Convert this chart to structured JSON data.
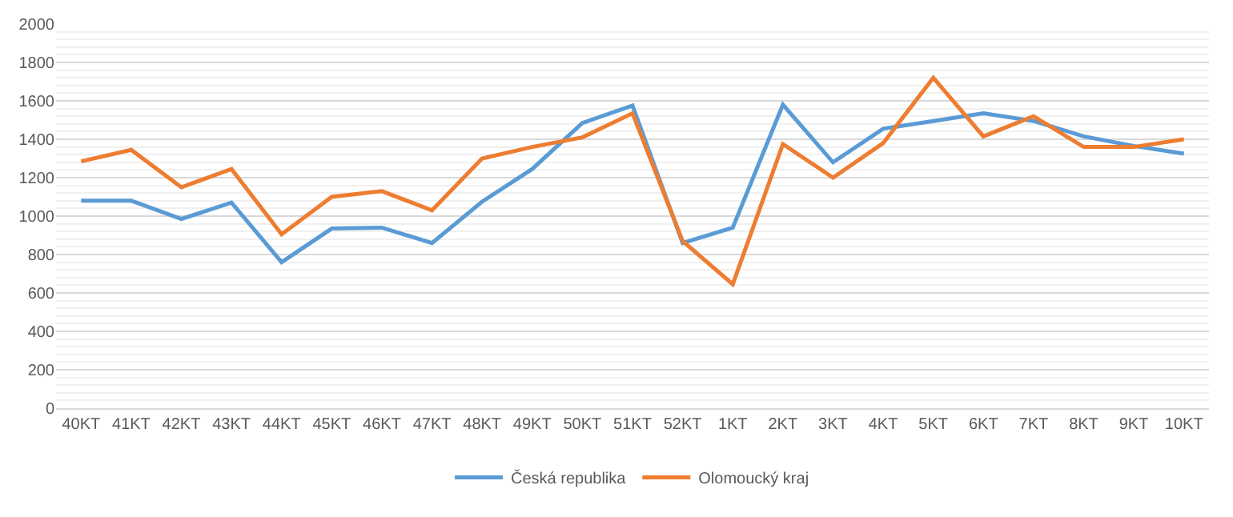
{
  "chart_data": {
    "type": "line",
    "categories": [
      "40KT",
      "41KT",
      "42KT",
      "43KT",
      "44KT",
      "45KT",
      "46KT",
      "47KT",
      "48KT",
      "49KT",
      "50KT",
      "51KT",
      "52KT",
      "1KT",
      "2KT",
      "3KT",
      "4KT",
      "5KT",
      "6KT",
      "7KT",
      "8KT",
      "9KT",
      "10KT"
    ],
    "series": [
      {
        "name": "Česká republika",
        "color": "#5b9bd5",
        "values": [
          1080,
          1080,
          985,
          1070,
          760,
          935,
          940,
          860,
          1075,
          1245,
          1485,
          1575,
          860,
          940,
          1580,
          1280,
          1455,
          1495,
          1535,
          1495,
          1415,
          1365,
          1325
        ]
      },
      {
        "name": "Olomoucký kraj",
        "color": "#ed7d31",
        "values": [
          1285,
          1345,
          1150,
          1245,
          905,
          1100,
          1130,
          1030,
          1300,
          1360,
          1410,
          1535,
          870,
          645,
          1375,
          1200,
          1380,
          1720,
          1415,
          1520,
          1360,
          1360,
          1400
        ]
      }
    ],
    "ylim": [
      0,
      2000
    ],
    "yticks": [
      0,
      200,
      400,
      600,
      800,
      1000,
      1200,
      1400,
      1600,
      1800,
      2000
    ],
    "grid": "y",
    "legend": "bottom",
    "marker": "none",
    "line_style": "solid"
  }
}
